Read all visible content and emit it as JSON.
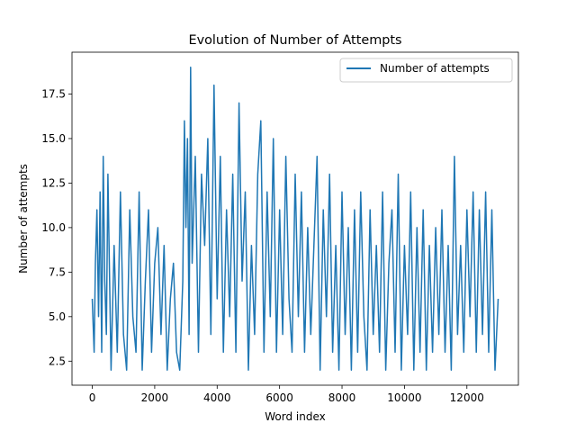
{
  "chart_data": {
    "type": "line",
    "title": "Evolution of Number of Attempts",
    "xlabel": "Word index",
    "ylabel": "Number of attempts",
    "xlim": [
      -650,
      13650
    ],
    "ylim": [
      1.15,
      19.85
    ],
    "x_ticks": [
      0,
      2000,
      4000,
      6000,
      8000,
      10000,
      12000
    ],
    "y_ticks": [
      2.5,
      5.0,
      7.5,
      10.0,
      12.5,
      15.0,
      17.5
    ],
    "x_tick_labels": [
      "0",
      "2000",
      "4000",
      "6000",
      "8000",
      "10000",
      "12000"
    ],
    "y_tick_labels": [
      "2.5",
      "5.0",
      "7.5",
      "10.0",
      "12.5",
      "15.0",
      "17.5"
    ],
    "legend_position": "top-right",
    "grid": false,
    "series": [
      {
        "name": "Number of attempts",
        "color": "#1f77b4",
        "points": [
          [
            0,
            6
          ],
          [
            60,
            3
          ],
          [
            100,
            8
          ],
          [
            150,
            11
          ],
          [
            200,
            5
          ],
          [
            250,
            12
          ],
          [
            300,
            3
          ],
          [
            350,
            14
          ],
          [
            400,
            7
          ],
          [
            450,
            4
          ],
          [
            500,
            13
          ],
          [
            600,
            2
          ],
          [
            700,
            9
          ],
          [
            800,
            3
          ],
          [
            900,
            12
          ],
          [
            1000,
            4
          ],
          [
            1100,
            2
          ],
          [
            1200,
            11
          ],
          [
            1300,
            5
          ],
          [
            1400,
            3
          ],
          [
            1500,
            12
          ],
          [
            1600,
            2
          ],
          [
            1700,
            7
          ],
          [
            1800,
            11
          ],
          [
            1900,
            3
          ],
          [
            2000,
            8
          ],
          [
            2100,
            10
          ],
          [
            2200,
            4
          ],
          [
            2300,
            9
          ],
          [
            2400,
            2
          ],
          [
            2500,
            6
          ],
          [
            2600,
            8
          ],
          [
            2700,
            3
          ],
          [
            2800,
            2
          ],
          [
            2900,
            7
          ],
          [
            2950,
            16
          ],
          [
            3000,
            10
          ],
          [
            3050,
            15
          ],
          [
            3100,
            4
          ],
          [
            3150,
            19
          ],
          [
            3200,
            8
          ],
          [
            3300,
            14
          ],
          [
            3400,
            3
          ],
          [
            3500,
            13
          ],
          [
            3600,
            9
          ],
          [
            3700,
            15
          ],
          [
            3800,
            4
          ],
          [
            3900,
            18
          ],
          [
            4000,
            6
          ],
          [
            4100,
            14
          ],
          [
            4200,
            3
          ],
          [
            4300,
            11
          ],
          [
            4400,
            5
          ],
          [
            4500,
            13
          ],
          [
            4600,
            3
          ],
          [
            4700,
            17
          ],
          [
            4800,
            7
          ],
          [
            4900,
            12
          ],
          [
            5000,
            2
          ],
          [
            5100,
            9
          ],
          [
            5200,
            4
          ],
          [
            5300,
            13
          ],
          [
            5400,
            16
          ],
          [
            5500,
            3
          ],
          [
            5600,
            12
          ],
          [
            5700,
            5
          ],
          [
            5800,
            15
          ],
          [
            5900,
            3
          ],
          [
            6000,
            11
          ],
          [
            6100,
            4
          ],
          [
            6200,
            14
          ],
          [
            6300,
            6
          ],
          [
            6400,
            3
          ],
          [
            6500,
            13
          ],
          [
            6600,
            5
          ],
          [
            6700,
            12
          ],
          [
            6800,
            3
          ],
          [
            6900,
            10
          ],
          [
            7000,
            4
          ],
          [
            7100,
            9
          ],
          [
            7200,
            14
          ],
          [
            7300,
            2
          ],
          [
            7400,
            11
          ],
          [
            7500,
            5
          ],
          [
            7600,
            13
          ],
          [
            7700,
            3
          ],
          [
            7800,
            9
          ],
          [
            7900,
            2
          ],
          [
            8000,
            12
          ],
          [
            8100,
            4
          ],
          [
            8200,
            10
          ],
          [
            8300,
            2
          ],
          [
            8400,
            11
          ],
          [
            8500,
            3
          ],
          [
            8600,
            12
          ],
          [
            8700,
            5
          ],
          [
            8800,
            2
          ],
          [
            8900,
            11
          ],
          [
            9000,
            4
          ],
          [
            9100,
            9
          ],
          [
            9200,
            3
          ],
          [
            9300,
            12
          ],
          [
            9400,
            2
          ],
          [
            9500,
            8
          ],
          [
            9600,
            11
          ],
          [
            9700,
            3
          ],
          [
            9800,
            13
          ],
          [
            9900,
            2
          ],
          [
            10000,
            9
          ],
          [
            10100,
            4
          ],
          [
            10200,
            12
          ],
          [
            10300,
            2
          ],
          [
            10400,
            10
          ],
          [
            10500,
            3
          ],
          [
            10600,
            11
          ],
          [
            10700,
            2
          ],
          [
            10800,
            9
          ],
          [
            10900,
            3
          ],
          [
            11000,
            10
          ],
          [
            11100,
            4
          ],
          [
            11200,
            11
          ],
          [
            11300,
            3
          ],
          [
            11400,
            9
          ],
          [
            11500,
            2
          ],
          [
            11600,
            14
          ],
          [
            11700,
            4
          ],
          [
            11800,
            9
          ],
          [
            11900,
            3
          ],
          [
            12000,
            11
          ],
          [
            12100,
            5
          ],
          [
            12200,
            12
          ],
          [
            12300,
            3
          ],
          [
            12400,
            11
          ],
          [
            12500,
            4
          ],
          [
            12600,
            12
          ],
          [
            12700,
            3
          ],
          [
            12800,
            11
          ],
          [
            12900,
            2
          ],
          [
            13000,
            6
          ]
        ]
      }
    ]
  }
}
